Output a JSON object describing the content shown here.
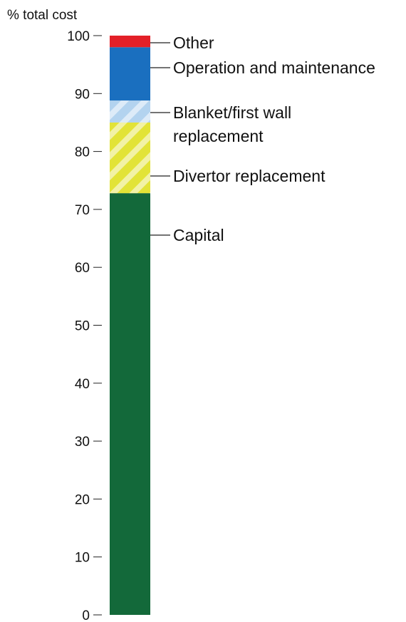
{
  "chart_data": {
    "type": "bar",
    "stacked": true,
    "ylabel": "% total cost",
    "ylim": [
      0,
      100
    ],
    "yticks": [
      0,
      10,
      20,
      30,
      40,
      50,
      60,
      70,
      80,
      90,
      100
    ],
    "grid": false,
    "series": [
      {
        "name": "Capital",
        "value": 72.8,
        "color": "#13693a",
        "hatched": false,
        "label_lines": [
          "Capital"
        ]
      },
      {
        "name": "Divertor replacement",
        "value": 12.2,
        "color": "#e2e337",
        "hatched": true,
        "label_lines": [
          "Divertor replacement"
        ]
      },
      {
        "name": "Blanket/first wall replacement",
        "value": 3.8,
        "color": "#b3d3ef",
        "hatched": true,
        "label_lines": [
          "Blanket/first wall",
          "replacement"
        ]
      },
      {
        "name": "Operation and maintenance",
        "value": 9.2,
        "color": "#1a6fbf",
        "hatched": false,
        "label_lines": [
          "Operation and maintenance"
        ]
      },
      {
        "name": "Other",
        "value": 2.0,
        "color": "#e32028",
        "hatched": false,
        "label_lines": [
          "Other"
        ]
      }
    ]
  }
}
